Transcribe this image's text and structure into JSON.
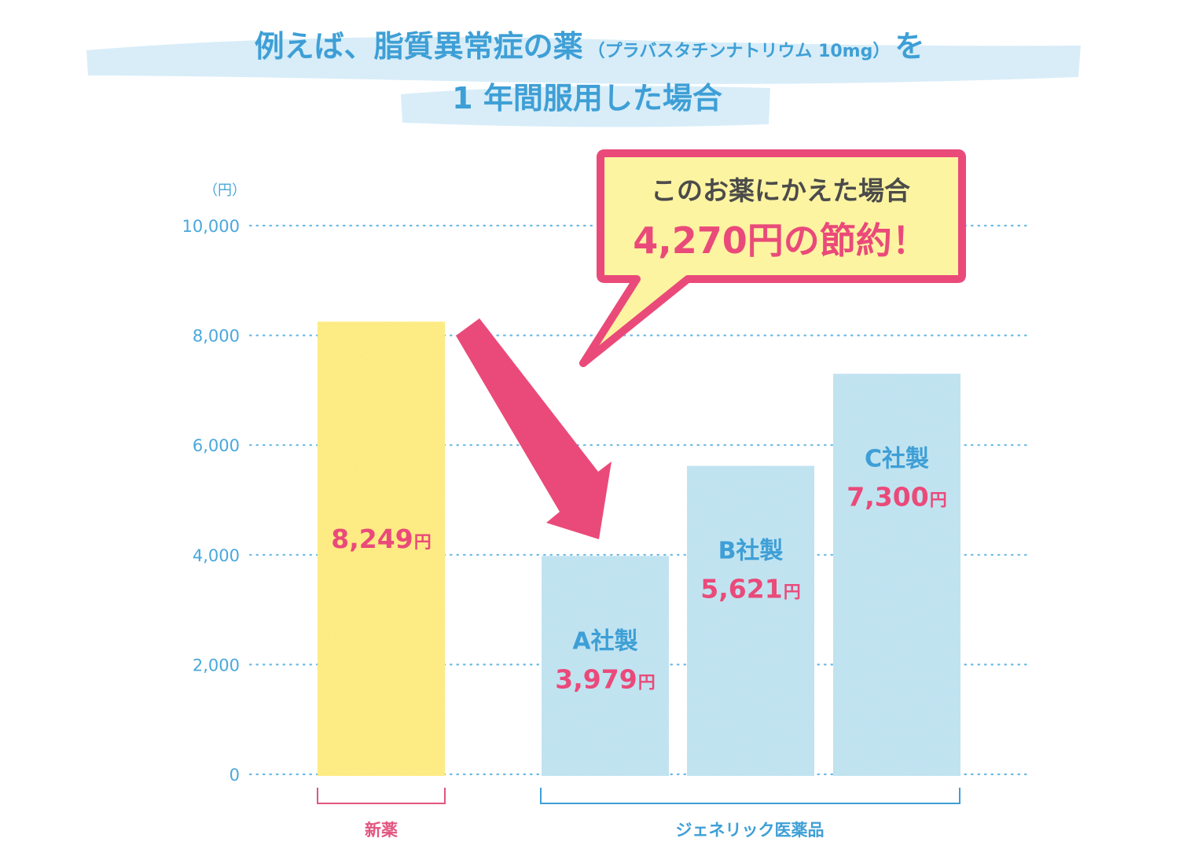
{
  "title": {
    "line1_main": "例えば、脂質異常症の薬",
    "line1_drug": "（プラバスタチンナトリウム 10mg）",
    "line1_suffix": "を",
    "line2": "1 年間服用した場合"
  },
  "colors": {
    "new_drug_bar": "#fde96e",
    "generic_bar": "#b9e0ef",
    "accent_pink": "#ea4a7a",
    "accent_blue": "#3e9fd6",
    "callout_fill": "#fdf4a1"
  },
  "callout": {
    "line1": "このお薬にかえた場合",
    "line2": "4,270円の節約！"
  },
  "groups": {
    "new": "新薬",
    "generic": "ジェネリック医薬品"
  },
  "chart_data": {
    "type": "bar",
    "unit_label": "（円）",
    "ylim": [
      0,
      10000
    ],
    "yticks": [
      0,
      2000,
      4000,
      6000,
      8000,
      10000
    ],
    "ytick_labels": [
      "0",
      "2,000",
      "4,000",
      "6,000",
      "8,000",
      "10,000"
    ],
    "grid": true,
    "bars": [
      {
        "group": "新薬",
        "company": "",
        "value": 8249,
        "value_label": "8,249",
        "currency": "円"
      },
      {
        "group": "ジェネリック医薬品",
        "company": "A社製",
        "value": 3979,
        "value_label": "3,979",
        "currency": "円"
      },
      {
        "group": "ジェネリック医薬品",
        "company": "B社製",
        "value": 5621,
        "value_label": "5,621",
        "currency": "円"
      },
      {
        "group": "ジェネリック医薬品",
        "company": "C社製",
        "value": 7300,
        "value_label": "7,300",
        "currency": "円"
      }
    ]
  }
}
